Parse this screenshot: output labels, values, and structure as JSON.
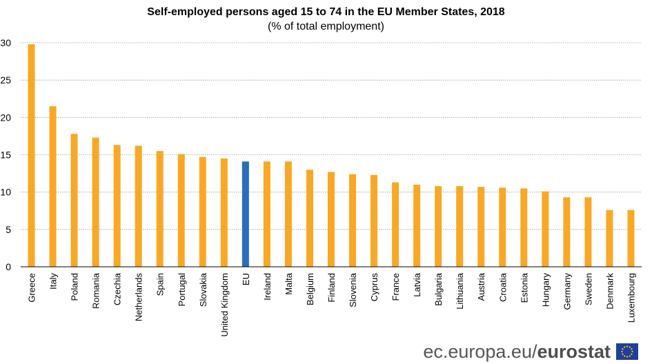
{
  "chart_data": {
    "type": "bar",
    "title": "Self-employed persons aged 15 to 74 in the EU Member States, 2018",
    "subtitle": "(% of total employment)",
    "xlabel": "",
    "ylabel": "",
    "ylim": [
      0,
      30
    ],
    "yticks": [
      0,
      5,
      10,
      15,
      20,
      25,
      30
    ],
    "grid": true,
    "legend": "none",
    "categories": [
      "Greece",
      "Italy",
      "Poland",
      "Romania",
      "Czechia",
      "Netherlands",
      "Spain",
      "Portugal",
      "Slovakia",
      "United Kingdom",
      "EU",
      "Ireland",
      "Malta",
      "Belgium",
      "Finland",
      "Slovenia",
      "Cyprus",
      "France",
      "Latvia",
      "Bulgaria",
      "Lithuania",
      "Austria",
      "Croatia",
      "Estonia",
      "Hungary",
      "Germany",
      "Sweden",
      "Denmark",
      "Luxembourg"
    ],
    "values": [
      29.8,
      21.5,
      17.8,
      17.3,
      16.3,
      16.2,
      15.5,
      15.1,
      14.7,
      14.5,
      14.1,
      14.1,
      14.1,
      13.0,
      12.7,
      12.4,
      12.3,
      11.3,
      11.0,
      10.8,
      10.8,
      10.7,
      10.6,
      10.5,
      10.1,
      9.3,
      9.3,
      7.6,
      7.6
    ],
    "colors": {
      "default": "#F9A825",
      "highlight": "#2A6EBB",
      "highlight_category": "EU"
    }
  },
  "footer": {
    "url": "ec.europa.eu/",
    "brand": "eurostat"
  }
}
